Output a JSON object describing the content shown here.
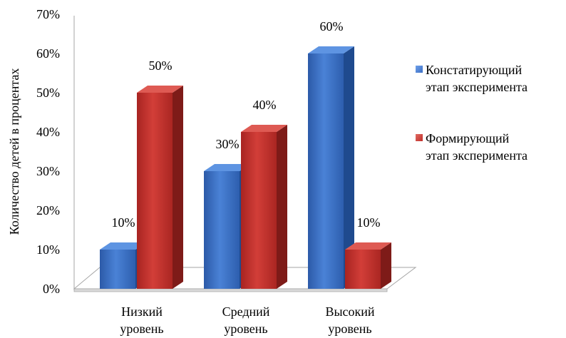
{
  "chart_data": {
    "type": "bar",
    "categories": [
      [
        "Низкий",
        "уровень"
      ],
      [
        "Средний",
        "уровень"
      ],
      [
        "Высокий",
        "уровень"
      ]
    ],
    "ylabel": "Количество детей в процентах",
    "ylim": [
      0,
      70
    ],
    "yticks": [
      "0%",
      "10%",
      "20%",
      "30%",
      "40%",
      "50%",
      "60%",
      "70%"
    ],
    "legend_position": "right",
    "series": [
      {
        "name": [
          "Констатирующий",
          "этап эксперимента"
        ],
        "color": "#3d6fc4",
        "values": [
          10,
          30,
          60
        ],
        "labels": [
          "10%",
          "30%",
          "60%"
        ]
      },
      {
        "name": [
          "Формирующий",
          "этап эксперимента"
        ],
        "color": "#c0302b",
        "values": [
          50,
          40,
          10
        ],
        "labels": [
          "50%",
          "40%",
          "10%"
        ]
      }
    ]
  }
}
